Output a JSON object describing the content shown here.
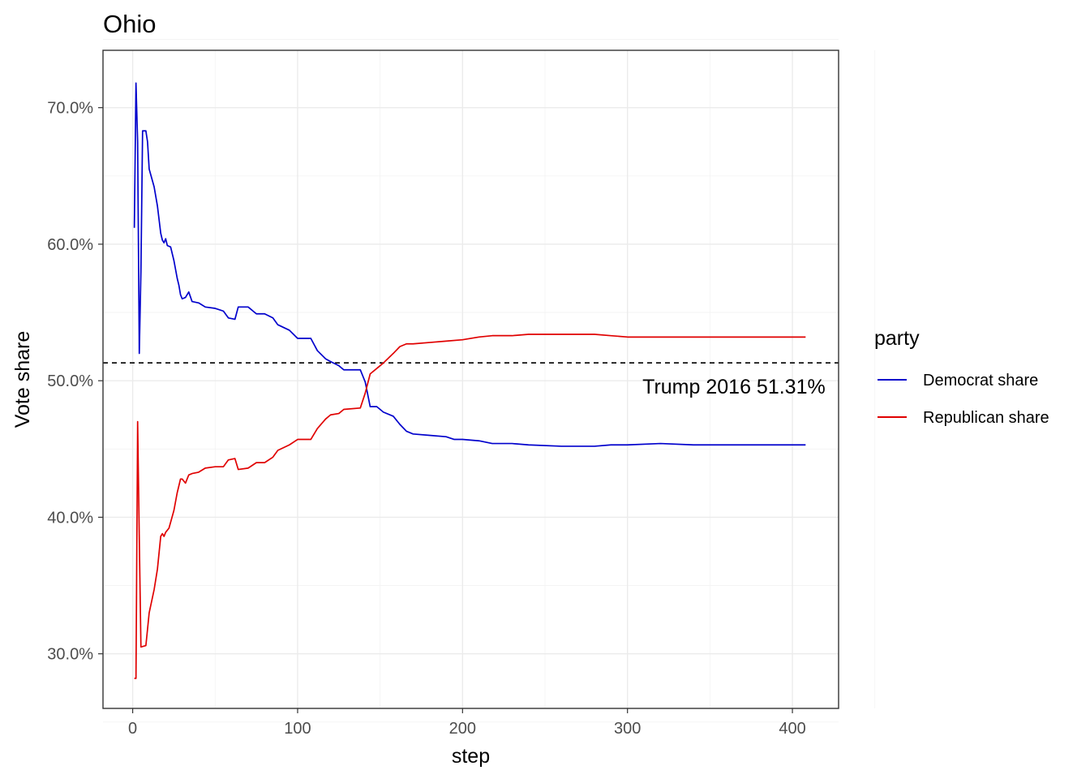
{
  "chart_data": {
    "type": "line",
    "title": "Ohio",
    "xlabel": "step",
    "ylabel": "Vote share",
    "xlim": [
      -18,
      428
    ],
    "ylim": [
      0.26,
      0.742
    ],
    "x_ticks": [
      0,
      100,
      200,
      300,
      400
    ],
    "x_tick_labels": [
      "0",
      "100",
      "200",
      "300",
      "400"
    ],
    "y_ticks": [
      0.3,
      0.4,
      0.5,
      0.6,
      0.7
    ],
    "y_tick_labels": [
      "30.0%",
      "40.0%",
      "50.0%",
      "60.0%",
      "70.0%"
    ],
    "grid": true,
    "legend": {
      "title": "party",
      "position": "right"
    },
    "reference_line": {
      "y": 0.5131,
      "style": "dashed",
      "label": "Trump 2016 51.31%",
      "label_x": 420,
      "label_y": 0.4905
    },
    "series": [
      {
        "name": "Democrat share",
        "color": "#0000cc",
        "points": [
          [
            1,
            0.612
          ],
          [
            2,
            0.718
          ],
          [
            3,
            0.675
          ],
          [
            4,
            0.52
          ],
          [
            5,
            0.58
          ],
          [
            6,
            0.683
          ],
          [
            8,
            0.683
          ],
          [
            9,
            0.675
          ],
          [
            10,
            0.655
          ],
          [
            13,
            0.642
          ],
          [
            15,
            0.628
          ],
          [
            17,
            0.608
          ],
          [
            18,
            0.603
          ],
          [
            19,
            0.601
          ],
          [
            20,
            0.604
          ],
          [
            21,
            0.599
          ],
          [
            23,
            0.598
          ],
          [
            25,
            0.588
          ],
          [
            27,
            0.575
          ],
          [
            28,
            0.57
          ],
          [
            29,
            0.563
          ],
          [
            30,
            0.56
          ],
          [
            32,
            0.561
          ],
          [
            34,
            0.565
          ],
          [
            36,
            0.558
          ],
          [
            40,
            0.557
          ],
          [
            44,
            0.554
          ],
          [
            50,
            0.553
          ],
          [
            55,
            0.551
          ],
          [
            58,
            0.546
          ],
          [
            62,
            0.545
          ],
          [
            64,
            0.554
          ],
          [
            70,
            0.554
          ],
          [
            75,
            0.549
          ],
          [
            80,
            0.549
          ],
          [
            85,
            0.546
          ],
          [
            88,
            0.541
          ],
          [
            95,
            0.537
          ],
          [
            100,
            0.531
          ],
          [
            108,
            0.531
          ],
          [
            112,
            0.522
          ],
          [
            117,
            0.516
          ],
          [
            120,
            0.514
          ],
          [
            125,
            0.511
          ],
          [
            128,
            0.508
          ],
          [
            138,
            0.508
          ],
          [
            141,
            0.499
          ],
          [
            144,
            0.481
          ],
          [
            148,
            0.481
          ],
          [
            152,
            0.477
          ],
          [
            158,
            0.474
          ],
          [
            162,
            0.468
          ],
          [
            166,
            0.463
          ],
          [
            170,
            0.461
          ],
          [
            180,
            0.46
          ],
          [
            190,
            0.459
          ],
          [
            195,
            0.457
          ],
          [
            200,
            0.457
          ],
          [
            210,
            0.456
          ],
          [
            218,
            0.454
          ],
          [
            230,
            0.454
          ],
          [
            240,
            0.453
          ],
          [
            260,
            0.452
          ],
          [
            280,
            0.452
          ],
          [
            290,
            0.453
          ],
          [
            300,
            0.453
          ],
          [
            320,
            0.454
          ],
          [
            340,
            0.453
          ],
          [
            360,
            0.453
          ],
          [
            380,
            0.453
          ],
          [
            400,
            0.453
          ],
          [
            408,
            0.453
          ]
        ]
      },
      {
        "name": "Republican share",
        "color": "#e00000",
        "points": [
          [
            1,
            0.282
          ],
          [
            2,
            0.282
          ],
          [
            3,
            0.47
          ],
          [
            4,
            0.385
          ],
          [
            5,
            0.305
          ],
          [
            8,
            0.306
          ],
          [
            9,
            0.318
          ],
          [
            10,
            0.33
          ],
          [
            13,
            0.347
          ],
          [
            15,
            0.362
          ],
          [
            17,
            0.386
          ],
          [
            18,
            0.388
          ],
          [
            19,
            0.386
          ],
          [
            20,
            0.389
          ],
          [
            22,
            0.392
          ],
          [
            25,
            0.405
          ],
          [
            27,
            0.418
          ],
          [
            28,
            0.423
          ],
          [
            29,
            0.428
          ],
          [
            30,
            0.428
          ],
          [
            32,
            0.425
          ],
          [
            34,
            0.431
          ],
          [
            36,
            0.432
          ],
          [
            40,
            0.433
          ],
          [
            44,
            0.436
          ],
          [
            50,
            0.437
          ],
          [
            55,
            0.437
          ],
          [
            58,
            0.442
          ],
          [
            62,
            0.443
          ],
          [
            64,
            0.435
          ],
          [
            70,
            0.436
          ],
          [
            75,
            0.44
          ],
          [
            80,
            0.44
          ],
          [
            85,
            0.444
          ],
          [
            88,
            0.449
          ],
          [
            95,
            0.453
          ],
          [
            100,
            0.457
          ],
          [
            108,
            0.457
          ],
          [
            112,
            0.465
          ],
          [
            117,
            0.472
          ],
          [
            120,
            0.475
          ],
          [
            125,
            0.476
          ],
          [
            128,
            0.479
          ],
          [
            138,
            0.48
          ],
          [
            141,
            0.491
          ],
          [
            144,
            0.505
          ],
          [
            148,
            0.509
          ],
          [
            152,
            0.513
          ],
          [
            158,
            0.52
          ],
          [
            162,
            0.525
          ],
          [
            166,
            0.527
          ],
          [
            170,
            0.527
          ],
          [
            180,
            0.528
          ],
          [
            190,
            0.529
          ],
          [
            200,
            0.53
          ],
          [
            210,
            0.532
          ],
          [
            218,
            0.533
          ],
          [
            230,
            0.533
          ],
          [
            240,
            0.534
          ],
          [
            260,
            0.534
          ],
          [
            280,
            0.534
          ],
          [
            290,
            0.533
          ],
          [
            300,
            0.532
          ],
          [
            320,
            0.532
          ],
          [
            340,
            0.532
          ],
          [
            360,
            0.532
          ],
          [
            380,
            0.532
          ],
          [
            400,
            0.532
          ],
          [
            408,
            0.532
          ]
        ]
      }
    ]
  }
}
